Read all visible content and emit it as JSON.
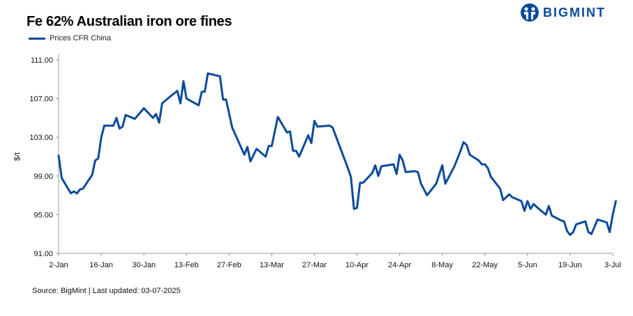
{
  "title": "Fe 62% Australian iron ore fines",
  "brand": "BIGMINT",
  "footer": "Source: BigMint | Last updated: 03-07-2025",
  "colors": {
    "line": "#0a4a9b",
    "brand": "#0a4a9b",
    "axis": "#9a9a9a"
  },
  "chart_data": {
    "type": "line",
    "ylabel": "$/t",
    "ylim": [
      91,
      111
    ],
    "yticks": [
      91,
      95,
      99,
      103,
      107,
      111
    ],
    "ytick_labels": [
      "91.00",
      "95.00",
      "99.00",
      "103.00",
      "107.00",
      "111.00"
    ],
    "xlim": [
      0,
      182
    ],
    "xticks": [
      0,
      14,
      28,
      42,
      56,
      70,
      84,
      98,
      112,
      126,
      140,
      154,
      168,
      182
    ],
    "xtick_labels": [
      "2-Jan",
      "16-Jan",
      "30-Jan",
      "13-Feb",
      "27-Feb",
      "13-Mar",
      "27-Mar",
      "10-Apr",
      "24-Apr",
      "8-May",
      "22-May",
      "5-Jun",
      "19-Jun",
      "3-Jul"
    ],
    "grid": false,
    "legend": "top-left",
    "series": [
      {
        "name": "Prices CFR China",
        "points": [
          [
            0,
            101.1
          ],
          [
            1,
            98.8
          ],
          [
            4,
            97.2
          ],
          [
            5,
            97.4
          ],
          [
            6,
            97.2
          ],
          [
            7,
            97.6
          ],
          [
            8,
            97.7
          ],
          [
            11,
            99.1
          ],
          [
            12,
            100.6
          ],
          [
            13,
            100.8
          ],
          [
            14,
            103.0
          ],
          [
            15,
            104.2
          ],
          [
            18,
            104.2
          ],
          [
            19,
            105.0
          ],
          [
            20,
            103.9
          ],
          [
            21,
            104.1
          ],
          [
            22,
            105.3
          ],
          [
            25,
            104.9
          ],
          [
            28,
            106.0
          ],
          [
            31,
            105.0
          ],
          [
            32,
            105.4
          ],
          [
            33,
            104.5
          ],
          [
            34,
            106.5
          ],
          [
            37,
            107.3
          ],
          [
            39,
            107.8
          ],
          [
            40,
            106.5
          ],
          [
            41,
            108.8
          ],
          [
            42,
            107.0
          ],
          [
            46,
            106.3
          ],
          [
            47,
            107.7
          ],
          [
            48,
            107.7
          ],
          [
            49,
            109.6
          ],
          [
            53,
            109.3
          ],
          [
            54,
            106.9
          ],
          [
            55,
            106.9
          ],
          [
            57,
            104.0
          ],
          [
            61,
            101.2
          ],
          [
            62,
            102.0
          ],
          [
            63,
            100.5
          ],
          [
            65,
            101.8
          ],
          [
            68,
            101.0
          ],
          [
            69,
            102.1
          ],
          [
            70,
            102.1
          ],
          [
            72,
            105.1
          ],
          [
            75,
            103.5
          ],
          [
            76,
            103.6
          ],
          [
            77,
            101.6
          ],
          [
            78,
            101.6
          ],
          [
            79,
            101.0
          ],
          [
            82,
            103.2
          ],
          [
            83,
            102.4
          ],
          [
            84,
            104.7
          ],
          [
            85,
            104.1
          ],
          [
            89,
            104.2
          ],
          [
            90,
            104.0
          ],
          [
            95,
            99.8
          ],
          [
            96,
            98.9
          ],
          [
            97,
            95.6
          ],
          [
            98,
            95.7
          ],
          [
            99,
            98.3
          ],
          [
            100,
            98.3
          ],
          [
            103,
            99.3
          ],
          [
            104,
            100.1
          ],
          [
            105,
            99.0
          ],
          [
            106,
            100.0
          ],
          [
            110,
            100.2
          ],
          [
            111,
            99.2
          ],
          [
            112,
            101.2
          ],
          [
            113,
            100.6
          ],
          [
            114,
            99.4
          ],
          [
            117,
            99.5
          ],
          [
            118,
            99.4
          ],
          [
            119,
            98.2
          ],
          [
            121,
            97.0
          ],
          [
            124,
            98.2
          ],
          [
            126,
            100.1
          ],
          [
            127,
            98.2
          ],
          [
            130,
            100.0
          ],
          [
            132,
            101.6
          ],
          [
            133,
            102.5
          ],
          [
            134,
            102.2
          ],
          [
            135,
            101.2
          ],
          [
            138,
            100.6
          ],
          [
            139,
            100.2
          ],
          [
            140,
            100.2
          ],
          [
            141,
            99.8
          ],
          [
            142,
            98.9
          ],
          [
            145,
            97.7
          ],
          [
            146,
            96.5
          ],
          [
            148,
            97.1
          ],
          [
            149,
            96.8
          ],
          [
            152,
            96.4
          ],
          [
            153,
            95.4
          ],
          [
            154,
            96.4
          ],
          [
            155,
            95.6
          ],
          [
            156,
            96.1
          ],
          [
            157,
            95.8
          ],
          [
            160,
            95.0
          ],
          [
            161,
            95.9
          ],
          [
            162,
            94.9
          ],
          [
            165,
            94.4
          ],
          [
            166,
            94.3
          ],
          [
            167,
            93.3
          ],
          [
            168,
            92.9
          ],
          [
            169,
            93.2
          ],
          [
            170,
            94.0
          ],
          [
            173,
            94.3
          ],
          [
            174,
            93.2
          ],
          [
            175,
            93.0
          ],
          [
            177,
            94.5
          ],
          [
            180,
            94.2
          ],
          [
            181,
            93.2
          ],
          [
            182,
            95.0
          ],
          [
            183,
            96.4
          ]
        ]
      }
    ]
  }
}
